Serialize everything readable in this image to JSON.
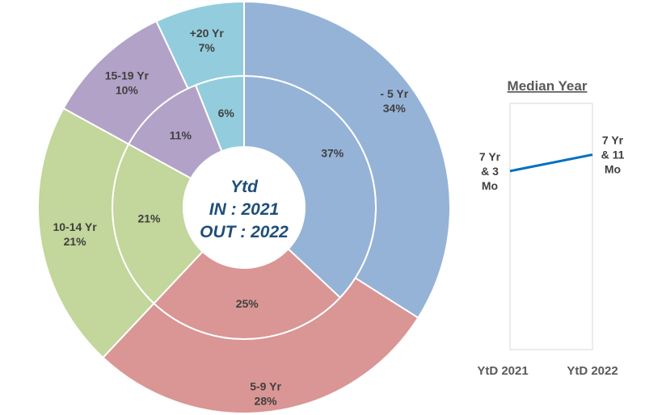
{
  "chart_data": [
    {
      "type": "pie",
      "subtype": "double-donut",
      "center_label": [
        "Ytd",
        "IN : 2021",
        "OUT : 2022"
      ],
      "categories": [
        "- 5 Yr",
        "5-9 Yr",
        "10-14 Yr",
        "15-19 Yr",
        "+20 Yr"
      ],
      "colors": [
        "#95b3d7",
        "#d99694",
        "#c3d69b",
        "#b3a2c7",
        "#93cddd"
      ],
      "series": [
        {
          "name": "IN : 2021",
          "ring": "inner",
          "values": [
            37,
            25,
            21,
            11,
            6
          ],
          "labels": [
            "37%",
            "25%",
            "21%",
            "11%",
            "6%"
          ]
        },
        {
          "name": "OUT : 2022",
          "ring": "outer",
          "values": [
            34,
            28,
            21,
            10,
            7
          ],
          "labels": [
            "- 5 Yr\n34%",
            "5-9 Yr\n28%",
            "10-14 Yr\n21%",
            "15-19 Yr\n10%",
            "+20 Yr\n7%"
          ]
        }
      ]
    },
    {
      "type": "line",
      "title": "Median Year",
      "categories": [
        "YtD 2021",
        "YtD 2022"
      ],
      "series": [
        {
          "name": "Median Year",
          "values": [
            7.25,
            7.9167
          ],
          "labels": [
            "7 Yr\n& 3\nMo",
            "7 Yr\n& 11\nMo"
          ],
          "color": "#0070c0"
        }
      ],
      "ylim": [
        0,
        10
      ],
      "xlabel": "",
      "ylabel": ""
    }
  ]
}
